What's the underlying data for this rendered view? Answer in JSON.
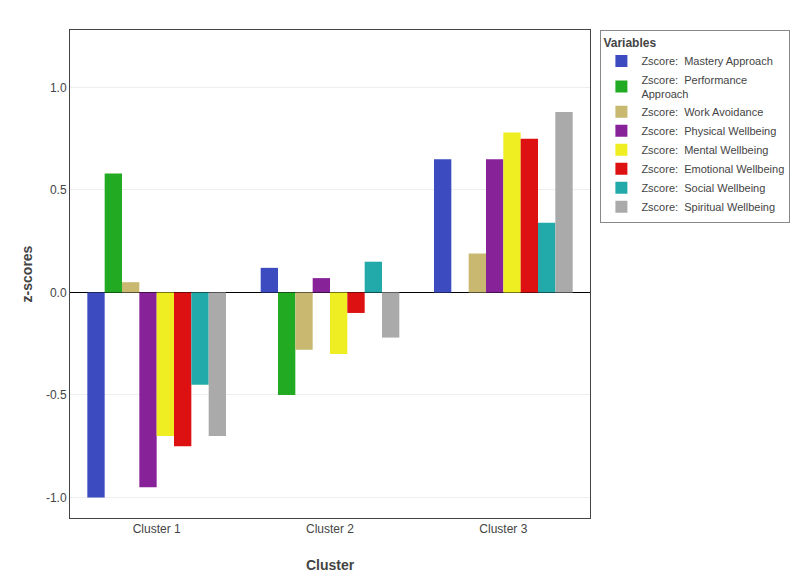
{
  "chart_data": {
    "type": "bar",
    "xlabel": "Cluster",
    "ylabel": "z-scores",
    "categories": [
      "Cluster 1",
      "Cluster 2",
      "Cluster 3"
    ],
    "legend_title": "Variables",
    "legend": "upper right",
    "grid": true,
    "ylim": [
      -1.1,
      1.28
    ],
    "yticks": [
      {
        "value": -1.0,
        "label": "-1.0"
      },
      -0.5,
      {
        "value": 0.0,
        "label": "0.0"
      },
      0.5,
      {
        "value": 1.0,
        "label": "1.0"
      }
    ],
    "series": [
      {
        "name": "Zscore:  Mastery Approach",
        "color": "#3C4CC0",
        "values": [
          -1.0,
          0.12,
          0.65
        ]
      },
      {
        "name": "Zscore:  Performance\nApproach",
        "color": "#22AA22",
        "values": [
          0.58,
          -0.5,
          0.0
        ]
      },
      {
        "name": "Zscore:  Work Avoidance",
        "color": "#C8B870",
        "values": [
          0.05,
          -0.28,
          0.19
        ]
      },
      {
        "name": "Zscore:  Physical Wellbeing",
        "color": "#882299",
        "values": [
          -0.95,
          0.07,
          0.65
        ]
      },
      {
        "name": "Zscore:  Mental Wellbeing",
        "color": "#EEEE22",
        "values": [
          -0.7,
          -0.3,
          0.78
        ]
      },
      {
        "name": "Zscore:  Emotional Wellbeing",
        "color": "#DD1111",
        "values": [
          -0.75,
          -0.1,
          0.75
        ]
      },
      {
        "name": "Zscore:  Social Wellbeing",
        "color": "#22AAAA",
        "values": [
          -0.45,
          0.15,
          0.34
        ]
      },
      {
        "name": "Zscore:  Spiritual Wellbeing",
        "color": "#AAAAAA",
        "values": [
          -0.7,
          -0.22,
          0.88
        ]
      }
    ]
  }
}
